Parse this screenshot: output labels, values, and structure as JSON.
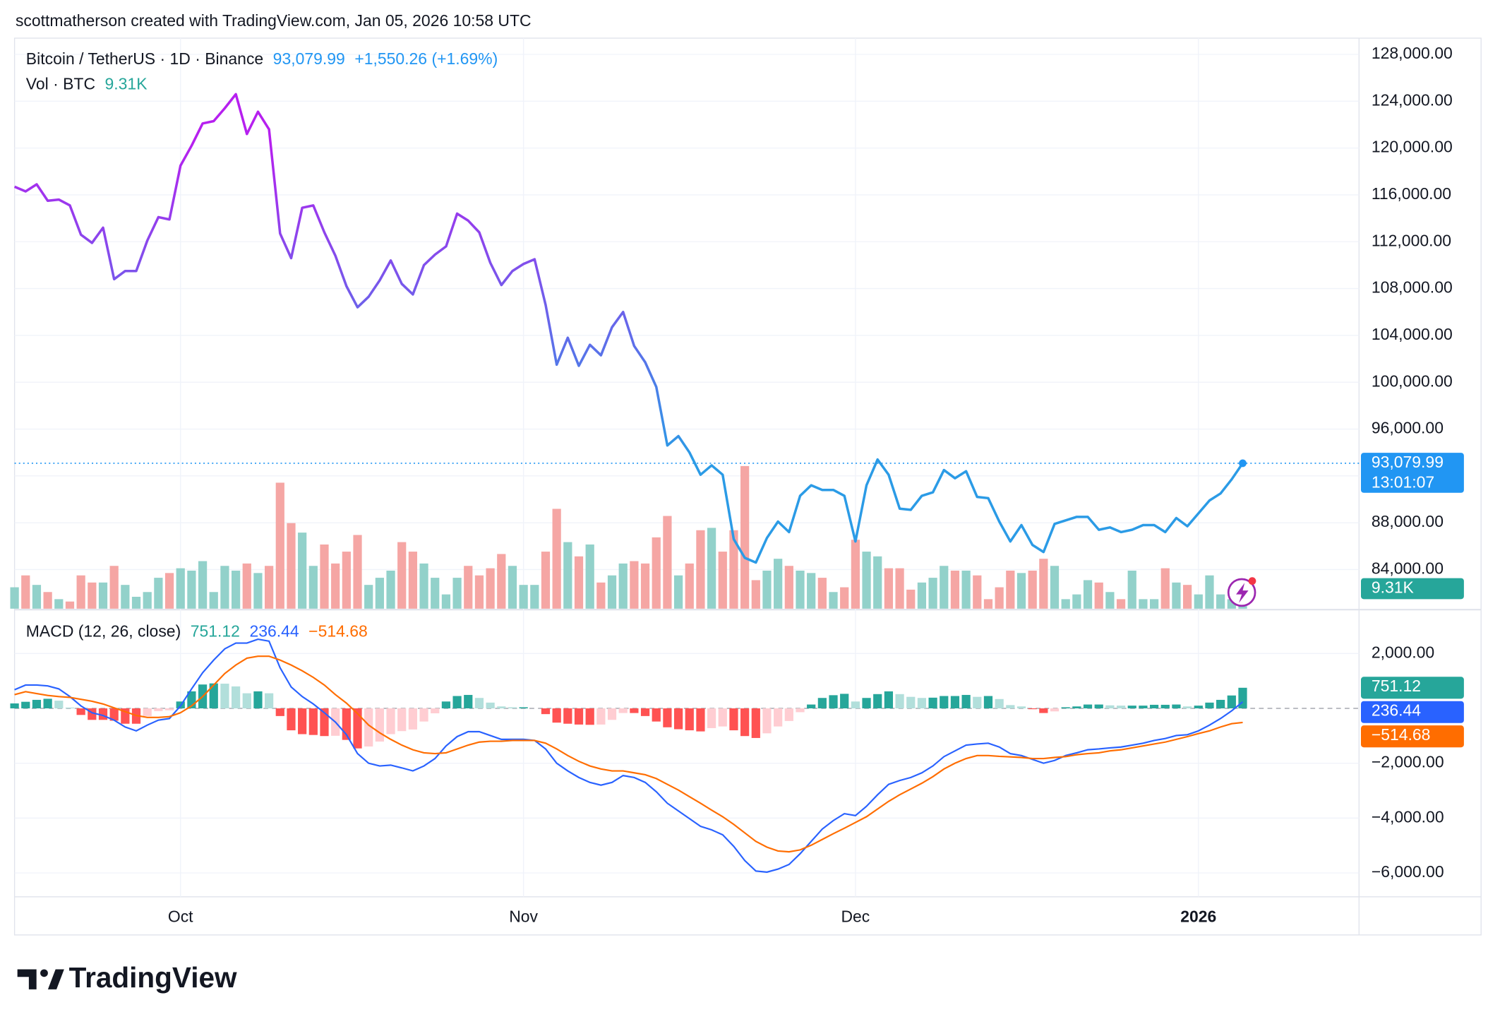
{
  "header": {
    "credit": "scottmatherson created with TradingView.com, Jan 05, 2026 10:58 UTC"
  },
  "footer": {
    "brand": "TradingView"
  },
  "chart_data": [
    {
      "type": "line",
      "title": "Bitcoin / TetherUS · 1D · Binance",
      "last_value_label": "93,079.99",
      "change_label": "+1,550.26 (+1.69%)",
      "countdown_label": "13:01:07",
      "color": "#2196f3",
      "gradient": [
        "#b620ef",
        "#2b9be6"
      ],
      "grid": true,
      "categories": [
        null,
        null,
        null,
        null,
        null,
        null,
        null,
        null,
        null,
        null,
        null,
        null,
        null,
        null,
        null,
        "Oct",
        null,
        null,
        null,
        null,
        null,
        null,
        null,
        null,
        null,
        null,
        null,
        null,
        null,
        null,
        null,
        null,
        null,
        null,
        null,
        null,
        null,
        null,
        null,
        null,
        null,
        null,
        null,
        null,
        null,
        null,
        "Nov",
        null,
        null,
        null,
        null,
        null,
        null,
        null,
        null,
        null,
        null,
        null,
        null,
        null,
        null,
        null,
        null,
        null,
        null,
        null,
        null,
        null,
        null,
        null,
        null,
        null,
        null,
        null,
        null,
        null,
        "Dec",
        null,
        null,
        null,
        null,
        null,
        null,
        null,
        null,
        null,
        null,
        null,
        null,
        null,
        null,
        null,
        null,
        null,
        null,
        null,
        null,
        null,
        null,
        null,
        null,
        null,
        null,
        null,
        null,
        null,
        null,
        "2026",
        null,
        null,
        null,
        null
      ],
      "values": [
        116700,
        116300,
        116900,
        115500,
        115600,
        115100,
        112600,
        111900,
        113200,
        108800,
        109500,
        109500,
        112100,
        114100,
        113900,
        118500,
        120200,
        122100,
        122300,
        123400,
        124600,
        121200,
        123100,
        121600,
        112700,
        110600,
        114900,
        115100,
        112800,
        110800,
        108200,
        106400,
        107300,
        108700,
        110400,
        108400,
        107500,
        110000,
        110900,
        111600,
        114400,
        113800,
        112800,
        110200,
        108300,
        109500,
        110100,
        110500,
        106600,
        101500,
        103800,
        101400,
        103200,
        102300,
        104700,
        106000,
        103100,
        101700,
        99600,
        94600,
        95400,
        94000,
        92100,
        92900,
        92100,
        86600,
        85000,
        84600,
        86700,
        88100,
        87200,
        90300,
        91200,
        90800,
        90800,
        90300,
        86400,
        91200,
        93400,
        92100,
        89200,
        89100,
        90300,
        90600,
        92500,
        91800,
        92400,
        90200,
        90100,
        88100,
        86400,
        87800,
        86100,
        85500,
        87900,
        88200,
        88500,
        88500,
        87400,
        87600,
        87200,
        87400,
        87800,
        87800,
        87200,
        88400,
        87700,
        88800,
        89900,
        90500,
        91700,
        93079.99
      ],
      "ylim": [
        80660,
        129385
      ],
      "yticks": [
        {
          "value": 84000,
          "label": "84,000.00"
        },
        {
          "value": 88000,
          "label": "88,000.00"
        },
        {
          "value": 92000,
          "label": "92,000.00"
        },
        {
          "value": 96000,
          "label": "96,000.00"
        },
        {
          "value": 100000,
          "label": "100,000.00"
        },
        {
          "value": 104000,
          "label": "104,000.00"
        },
        {
          "value": 108000,
          "label": "108,000.00"
        },
        {
          "value": 112000,
          "label": "112,000.00"
        },
        {
          "value": 116000,
          "label": "116,000.00"
        },
        {
          "value": 120000,
          "label": "120,000.00"
        },
        {
          "value": 124000,
          "label": "124,000.00"
        },
        {
          "value": 128000,
          "label": "128,000.00"
        }
      ]
    },
    {
      "type": "bar",
      "title": "Vol · BTC",
      "last_value_label": "9.31K",
      "up_color": "#92d1ca",
      "down_color": "#f5a6a4",
      "tag_color": "#26a69a",
      "values": [
        9,
        14,
        10,
        7,
        4,
        3,
        14,
        11,
        11,
        18,
        10,
        5,
        7,
        13,
        15,
        17,
        16,
        20,
        7,
        18,
        16,
        19,
        15,
        18,
        53,
        36,
        32,
        18,
        27,
        19,
        24,
        31,
        10,
        13,
        16,
        28,
        24,
        19,
        13,
        6,
        13,
        18,
        14,
        17,
        23,
        18,
        10,
        10,
        24,
        42,
        28,
        22,
        27,
        11,
        14,
        19,
        20,
        19,
        30,
        39,
        14,
        19,
        33,
        34,
        24,
        33,
        60,
        12,
        16,
        21,
        18,
        16,
        15,
        13,
        7,
        9,
        29,
        24,
        22,
        17,
        17,
        8,
        11,
        13,
        18,
        16,
        16,
        14,
        4,
        9,
        16,
        15,
        16,
        21,
        18,
        4,
        6,
        12,
        11,
        7,
        4,
        16,
        4,
        4,
        17,
        11,
        10,
        6,
        14,
        6,
        4,
        9.31
      ],
      "ylim": [
        0,
        240
      ]
    },
    {
      "type": "macd",
      "title": "MACD (12, 26, close)",
      "zero_line": true,
      "ylim": [
        -6870,
        3565
      ],
      "yticks": [
        {
          "value": 2000,
          "label": "2,000.00"
        },
        {
          "value": -2000,
          "label": "−2,000.00"
        },
        {
          "value": -4000,
          "label": "−4,000.00"
        },
        {
          "value": -6000,
          "label": "−6,000.00"
        }
      ],
      "series": [
        {
          "type": "bar",
          "colors": [
            "#26a69a",
            "#b2dfdb",
            "#ff5252",
            "#ffcdd2"
          ],
          "last_label": "751.12",
          "values": [
            180,
            240,
            310,
            350,
            280,
            30,
            -240,
            -420,
            -420,
            -450,
            -560,
            -560,
            -280,
            -100,
            -70,
            250,
            620,
            870,
            910,
            900,
            800,
            550,
            620,
            550,
            -280,
            -800,
            -940,
            -970,
            -1010,
            -1000,
            -1150,
            -1460,
            -1390,
            -1210,
            -940,
            -830,
            -770,
            -480,
            -180,
            250,
            450,
            490,
            380,
            210,
            70,
            40,
            40,
            0,
            -210,
            -520,
            -560,
            -590,
            -600,
            -590,
            -420,
            -170,
            -170,
            -280,
            -480,
            -690,
            -760,
            -800,
            -840,
            -720,
            -660,
            -800,
            -1010,
            -1080,
            -910,
            -660,
            -460,
            -140,
            140,
            380,
            480,
            530,
            250,
            380,
            520,
            620,
            520,
            420,
            380,
            390,
            450,
            450,
            490,
            420,
            450,
            340,
            120,
            70,
            -30,
            -170,
            -110,
            40,
            70,
            140,
            140,
            110,
            100,
            100,
            100,
            130,
            130,
            140,
            70,
            100,
            210,
            310,
            470,
            751.12
          ]
        },
        {
          "type": "line",
          "color": "#2962ff",
          "last_label": "236.44",
          "values": [
            680,
            850,
            850,
            820,
            710,
            430,
            90,
            -160,
            -260,
            -430,
            -680,
            -820,
            -610,
            -430,
            -370,
            90,
            710,
            1300,
            1760,
            2170,
            2380,
            2380,
            2520,
            2450,
            1480,
            780,
            430,
            160,
            -160,
            -500,
            -960,
            -1650,
            -2000,
            -2100,
            -2070,
            -2170,
            -2280,
            -2100,
            -1830,
            -1370,
            -1030,
            -850,
            -850,
            -990,
            -1130,
            -1130,
            -1130,
            -1170,
            -1480,
            -2000,
            -2280,
            -2520,
            -2700,
            -2800,
            -2700,
            -2450,
            -2520,
            -2700,
            -3040,
            -3460,
            -3740,
            -4020,
            -4300,
            -4430,
            -4610,
            -5030,
            -5550,
            -5930,
            -5970,
            -5860,
            -5690,
            -5300,
            -4850,
            -4400,
            -4090,
            -3840,
            -3910,
            -3570,
            -3150,
            -2770,
            -2630,
            -2520,
            -2350,
            -2100,
            -1760,
            -1550,
            -1340,
            -1300,
            -1270,
            -1410,
            -1650,
            -1720,
            -1860,
            -2000,
            -1900,
            -1720,
            -1620,
            -1510,
            -1480,
            -1440,
            -1410,
            -1340,
            -1270,
            -1170,
            -1100,
            -990,
            -960,
            -820,
            -610,
            -370,
            -90,
            236.44
          ]
        },
        {
          "type": "line",
          "color": "#ff6d00",
          "last_label": "−514.68",
          "values": [
            500,
            610,
            540,
            470,
            430,
            400,
            330,
            260,
            160,
            20,
            -120,
            -260,
            -330,
            -330,
            -300,
            -160,
            90,
            430,
            850,
            1270,
            1580,
            1830,
            1900,
            1900,
            1760,
            1580,
            1370,
            1130,
            850,
            500,
            190,
            -190,
            -610,
            -890,
            -1130,
            -1340,
            -1510,
            -1620,
            -1650,
            -1620,
            -1480,
            -1340,
            -1230,
            -1200,
            -1200,
            -1170,
            -1170,
            -1170,
            -1270,
            -1480,
            -1720,
            -1930,
            -2100,
            -2210,
            -2280,
            -2280,
            -2350,
            -2420,
            -2560,
            -2770,
            -2980,
            -3220,
            -3460,
            -3710,
            -3950,
            -4230,
            -4540,
            -4850,
            -5060,
            -5200,
            -5230,
            -5160,
            -4990,
            -4780,
            -4570,
            -4370,
            -4160,
            -3950,
            -3670,
            -3390,
            -3150,
            -2940,
            -2730,
            -2490,
            -2210,
            -2000,
            -1830,
            -1720,
            -1720,
            -1750,
            -1770,
            -1790,
            -1830,
            -1830,
            -1790,
            -1760,
            -1690,
            -1650,
            -1620,
            -1550,
            -1510,
            -1440,
            -1370,
            -1300,
            -1230,
            -1130,
            -1030,
            -920,
            -820,
            -680,
            -560,
            -514.68
          ]
        }
      ]
    }
  ]
}
